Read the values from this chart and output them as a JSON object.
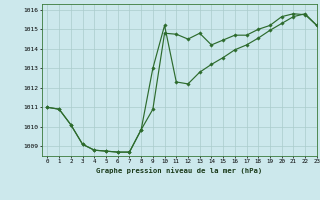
{
  "title": "Graphe pression niveau de la mer (hPa)",
  "bg_color": "#cce8ec",
  "grid_color": "#aacccc",
  "line_color": "#2d6b2d",
  "xlim": [
    -0.5,
    23
  ],
  "ylim": [
    1008.5,
    1016.3
  ],
  "xticks": [
    0,
    1,
    2,
    3,
    4,
    5,
    6,
    7,
    8,
    9,
    10,
    11,
    12,
    13,
    14,
    15,
    16,
    17,
    18,
    19,
    20,
    21,
    22,
    23
  ],
  "yticks": [
    1009,
    1010,
    1011,
    1012,
    1013,
    1014,
    1015,
    1016
  ],
  "series1_x": [
    0,
    1,
    2,
    3,
    4,
    5,
    6,
    7,
    8,
    9,
    10,
    11,
    12,
    13,
    14,
    15,
    16,
    17,
    18,
    19,
    20,
    21,
    22,
    23
  ],
  "series1_y": [
    1011.0,
    1010.9,
    1010.1,
    1009.1,
    1008.8,
    1008.75,
    1008.7,
    1008.7,
    1009.85,
    1010.9,
    1014.8,
    1014.75,
    1014.5,
    1014.8,
    1014.2,
    1014.45,
    1014.7,
    1014.7,
    1015.0,
    1015.2,
    1015.65,
    1015.8,
    1015.75,
    1015.2
  ],
  "series2_x": [
    0,
    1,
    2,
    3,
    4,
    5,
    6,
    7,
    8,
    9,
    10,
    11,
    12,
    13,
    14,
    15,
    16,
    17,
    18,
    19,
    20,
    21,
    22,
    23
  ],
  "series2_y": [
    1011.0,
    1010.9,
    1010.1,
    1009.1,
    1008.8,
    1008.75,
    1008.7,
    1008.7,
    1009.85,
    1013.0,
    1015.2,
    1012.3,
    1012.2,
    1012.8,
    1013.2,
    1013.55,
    1013.95,
    1014.2,
    1014.55,
    1014.95,
    1015.3,
    1015.65,
    1015.8,
    1015.2
  ]
}
